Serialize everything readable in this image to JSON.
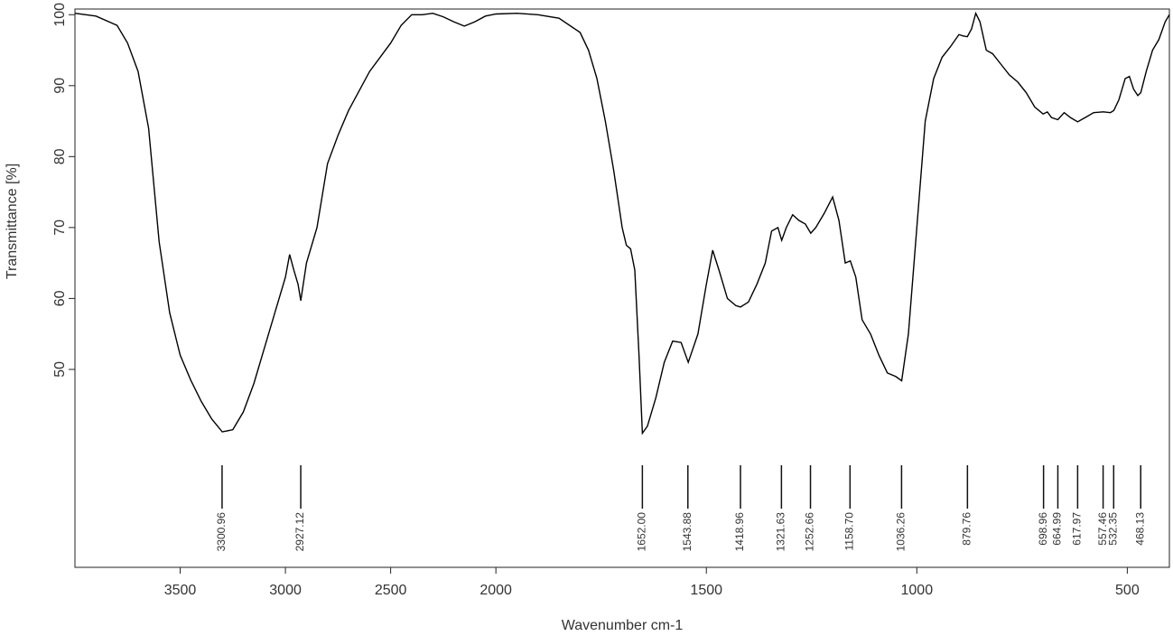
{
  "chart_data": {
    "type": "line",
    "x_label": "Wavenumber cm-1",
    "y_label": "Transmittance [%]",
    "xlim": [
      4000,
      400
    ],
    "x_break": 2000,
    "x_break_factor": 2,
    "xticks": [
      3500,
      3000,
      2500,
      2000,
      1500,
      1000,
      500
    ],
    "ylim": [
      22.1,
      100.8
    ],
    "yticks": [
      50,
      60,
      70,
      80,
      90,
      100
    ],
    "color": "#000000",
    "x": [
      4000,
      3900,
      3800,
      3750,
      3700,
      3650,
      3600,
      3550,
      3500,
      3450,
      3400,
      3350,
      3300,
      3250,
      3200,
      3150,
      3100,
      3050,
      3000,
      2980,
      2960,
      2940,
      2927,
      2900,
      2850,
      2800,
      2750,
      2700,
      2600,
      2500,
      2450,
      2400,
      2350,
      2300,
      2250,
      2200,
      2150,
      2100,
      2050,
      2000,
      1950,
      1900,
      1850,
      1800,
      1780,
      1760,
      1740,
      1720,
      1700,
      1690,
      1680,
      1670,
      1660,
      1652,
      1640,
      1620,
      1600,
      1580,
      1560,
      1543,
      1520,
      1500,
      1485,
      1470,
      1450,
      1430,
      1419,
      1400,
      1380,
      1360,
      1345,
      1330,
      1321,
      1310,
      1295,
      1280,
      1265,
      1252,
      1240,
      1220,
      1200,
      1185,
      1170,
      1158,
      1145,
      1130,
      1110,
      1090,
      1070,
      1050,
      1036,
      1020,
      1000,
      980,
      960,
      940,
      920,
      900,
      890,
      880,
      870,
      860,
      850,
      835,
      820,
      800,
      780,
      760,
      740,
      720,
      700,
      690,
      680,
      665,
      650,
      635,
      618,
      600,
      580,
      557,
      540,
      532,
      520,
      505,
      495,
      485,
      475,
      468,
      455,
      440,
      425,
      410,
      400
    ],
    "values": [
      100.2,
      99.8,
      98.5,
      96,
      92,
      84,
      68,
      58,
      52,
      48.5,
      45.5,
      43,
      41.2,
      41.5,
      44,
      48,
      53,
      58,
      63,
      66.2,
      64,
      62,
      59.7,
      65,
      70,
      79,
      83,
      86.5,
      92,
      96,
      98.5,
      100,
      100,
      100.2,
      99.7,
      99,
      98.4,
      99,
      99.8,
      100.1,
      100.2,
      100,
      99.5,
      97.5,
      95,
      91,
      85,
      78,
      70,
      67.5,
      67,
      64,
      52,
      41,
      42,
      46,
      51,
      54,
      53.8,
      51,
      55,
      62,
      66.8,
      64,
      60,
      59,
      58.8,
      59.5,
      62,
      65,
      69.5,
      70,
      68.2,
      70,
      71.8,
      71,
      70.5,
      69.2,
      70,
      72,
      74.3,
      71,
      65,
      65.3,
      63,
      57,
      55,
      52,
      49.5,
      49,
      48.4,
      55,
      70,
      85,
      91,
      94,
      95.5,
      97.2,
      97,
      96.9,
      98,
      100.2,
      99,
      95,
      94.5,
      93,
      91.5,
      90.5,
      89,
      87,
      86,
      86.3,
      85.5,
      85.2,
      86.2,
      85.5,
      84.9,
      85.5,
      86.2,
      86.3,
      86.2,
      86.5,
      88,
      91,
      91.3,
      89.5,
      88.6,
      89,
      92,
      95,
      96.5,
      99,
      100
    ],
    "peaks": [
      3300.96,
      2927.12,
      {
        "value": 1652,
        "label": "1652.00"
      },
      1543.88,
      1418.96,
      1321.63,
      1252.66,
      {
        "value": 1158.7,
        "label": "1158.70"
      },
      1036.26,
      879.76,
      698.96,
      664.99,
      617.97,
      557.46,
      532.35,
      468.13
    ]
  }
}
